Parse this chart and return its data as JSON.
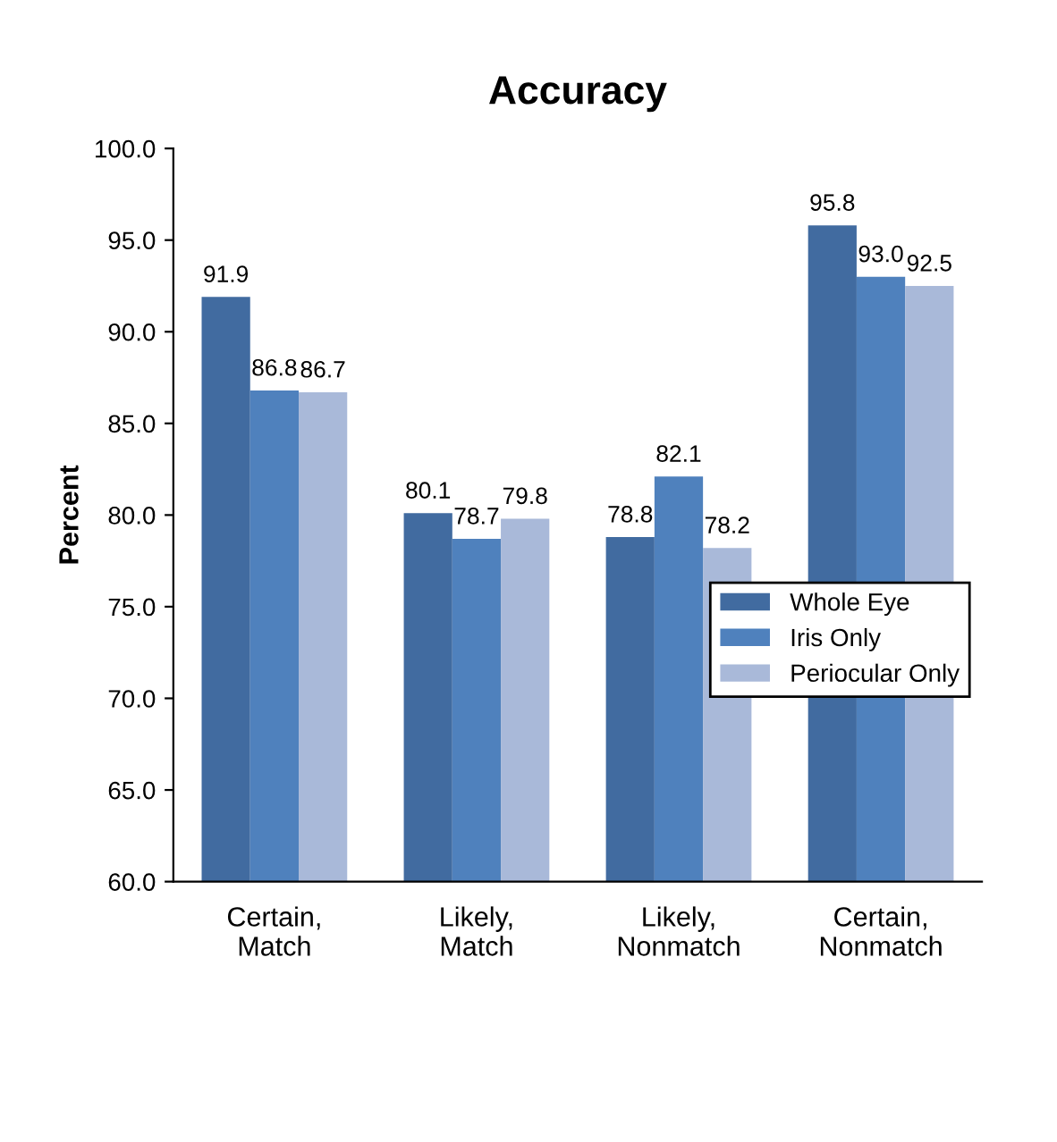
{
  "chart_data": {
    "type": "bar",
    "title": "Accuracy",
    "ylabel": "Percent",
    "categories": [
      "Certain,\nMatch",
      "Likely,\nMatch",
      "Likely,\nNonmatch",
      "Certain,\nNonmatch"
    ],
    "series": [
      {
        "name": "Whole Eye",
        "color": "#416ba0",
        "values": [
          91.9,
          80.1,
          78.8,
          95.8
        ],
        "value_labels": [
          "91.9",
          "80.1",
          "78.8",
          "95.8"
        ]
      },
      {
        "name": "Iris Only",
        "color": "#4f81bd",
        "values": [
          86.8,
          78.7,
          82.1,
          93.0
        ],
        "value_labels": [
          "86.8",
          "78.7",
          "82.1",
          "93.0"
        ]
      },
      {
        "name": "Periocular Only",
        "color": "#a9b9d9",
        "values": [
          86.7,
          79.8,
          78.2,
          92.5
        ],
        "value_labels": [
          "86.7",
          "79.8",
          "78.2",
          "92.5"
        ]
      }
    ],
    "ylim": [
      60,
      100
    ],
    "yticks": [
      {
        "value": 60,
        "label": "60.0"
      },
      {
        "value": 65,
        "label": "65.0"
      },
      {
        "value": 70,
        "label": "70.0"
      },
      {
        "value": 75,
        "label": "75.0"
      },
      {
        "value": 80,
        "label": "80.0"
      },
      {
        "value": 85,
        "label": "85.0"
      },
      {
        "value": 90,
        "label": "90.0"
      },
      {
        "value": 95,
        "label": "95.0"
      },
      {
        "value": 100,
        "label": "100.0"
      }
    ],
    "legend": "right",
    "grid": false
  }
}
